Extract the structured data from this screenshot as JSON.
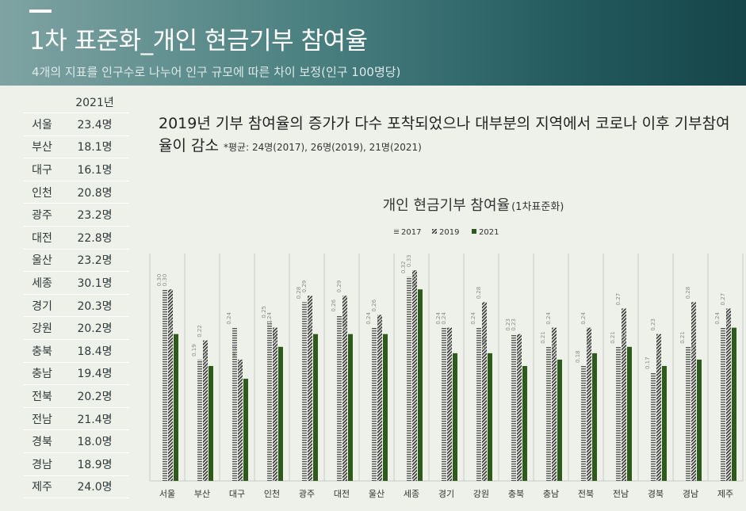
{
  "header": {
    "title": "1차 표준화_개인 현금기부 참여율",
    "subtitle": "4개의 지표를 인구수로 나누어 인구 규모에 따른 차이 보정(인구 100명당)"
  },
  "table": {
    "year_header": "2021년",
    "rows": [
      {
        "region": "서울",
        "value": "23.4명"
      },
      {
        "region": "부산",
        "value": "18.1명"
      },
      {
        "region": "대구",
        "value": "16.1명"
      },
      {
        "region": "인천",
        "value": "20.8명"
      },
      {
        "region": "광주",
        "value": "23.2명"
      },
      {
        "region": "대전",
        "value": "22.8명"
      },
      {
        "region": "울산",
        "value": "23.2명"
      },
      {
        "region": "세종",
        "value": "30.1명"
      },
      {
        "region": "경기",
        "value": "20.3명"
      },
      {
        "region": "강원",
        "value": "20.2명"
      },
      {
        "region": "충북",
        "value": "18.4명"
      },
      {
        "region": "충남",
        "value": "19.4명"
      },
      {
        "region": "전북",
        "value": "20.2명"
      },
      {
        "region": "전남",
        "value": "21.4명"
      },
      {
        "region": "경북",
        "value": "18.0명"
      },
      {
        "region": "경남",
        "value": "18.9명"
      },
      {
        "region": "제주",
        "value": "24.0명"
      }
    ]
  },
  "headline": {
    "main": "2019년 기부 참여율의 증가가 다수 포착되었으나 대부분의 지역에서 코로나 이후 기부참여율이 감소",
    "note": "*평균: 24명(2017), 26명(2019), 21명(2021)"
  },
  "chart_data": {
    "type": "bar",
    "title": "개인 현금기부 참여율",
    "title_suffix": "(1차표준화)",
    "categories": [
      "서울",
      "부산",
      "대구",
      "인천",
      "광주",
      "대전",
      "울산",
      "세종",
      "경기",
      "강원",
      "충북",
      "충남",
      "전북",
      "전남",
      "경북",
      "경남",
      "제주"
    ],
    "series": [
      {
        "name": "2017",
        "values": [
          0.3,
          0.19,
          0.24,
          0.25,
          0.28,
          0.26,
          0.24,
          0.32,
          0.24,
          0.24,
          0.23,
          0.21,
          0.18,
          0.21,
          0.17,
          0.21,
          0.24
        ]
      },
      {
        "name": "2019",
        "values": [
          0.3,
          0.22,
          0.19,
          0.24,
          0.29,
          0.29,
          0.26,
          0.33,
          0.24,
          0.28,
          0.23,
          0.24,
          0.24,
          0.27,
          0.23,
          0.28,
          0.27
        ]
      },
      {
        "name": "2021",
        "values": [
          0.23,
          0.18,
          0.16,
          0.21,
          0.23,
          0.23,
          0.23,
          0.3,
          0.2,
          0.2,
          0.18,
          0.19,
          0.2,
          0.21,
          0.18,
          0.19,
          0.24
        ]
      }
    ],
    "ylim": [
      0,
      0.35
    ],
    "grid": true,
    "legend": "top-center",
    "colors": {
      "s2017": "#555555",
      "s2019": "#333333",
      "s2021": "#2e5a1c",
      "grid": "#c8ccc5",
      "background": "#eef0ea"
    }
  }
}
